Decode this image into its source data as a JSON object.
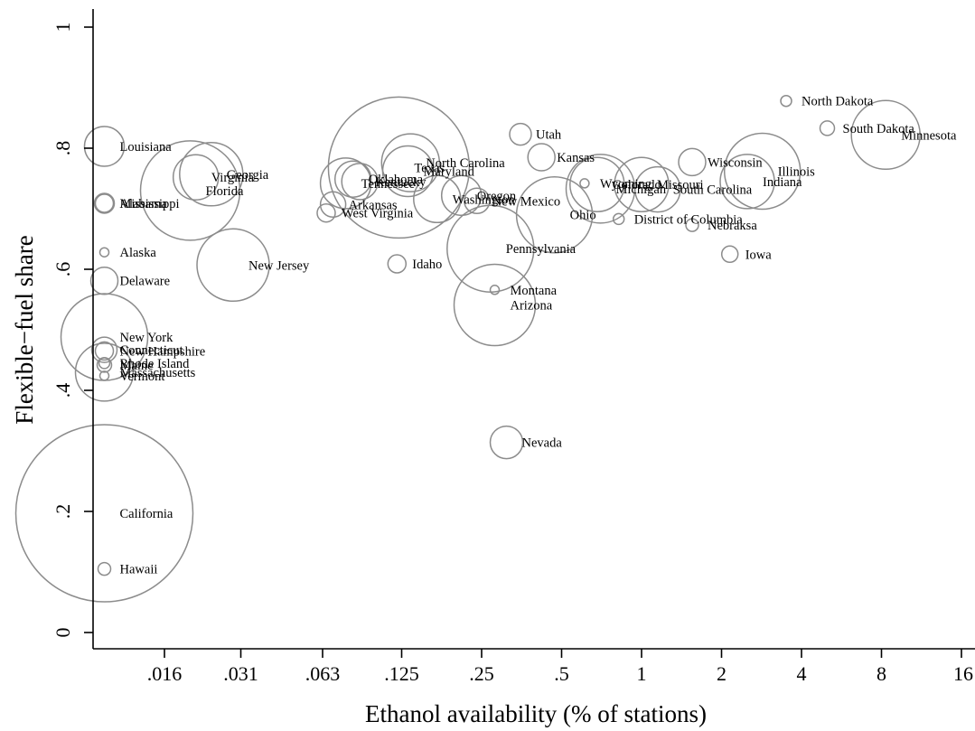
{
  "chart_data": {
    "type": "scatter",
    "xlabel": "Ethanol availability (% of stations)",
    "ylabel": "Flexible−fuel share",
    "x_scale": "log2",
    "xlim": [
      0.0078,
      16
    ],
    "ylim": [
      0,
      1
    ],
    "x_ticks": [
      0.016,
      0.031,
      0.063,
      0.125,
      0.25,
      0.5,
      1,
      2,
      4,
      8,
      16
    ],
    "x_tick_labels": [
      ".016",
      ".031",
      ".063",
      ".125",
      ".25",
      ".5",
      "1",
      "2",
      "4",
      "8",
      "16"
    ],
    "y_ticks": [
      0,
      0.2,
      0.4,
      0.6,
      0.8,
      1
    ],
    "y_tick_labels": [
      "0",
      ".2",
      ".4",
      ".6",
      ".8",
      "1"
    ],
    "grid": false,
    "legend": "none",
    "marker_color": "#8c8c8c",
    "bubble_size_note": "marker area varies by state",
    "points": [
      {
        "label": "North Dakota",
        "x": 3.5,
        "y": 0.878,
        "r": 6
      },
      {
        "label": "South Dakota",
        "x": 5.0,
        "y": 0.833,
        "r": 8
      },
      {
        "label": "Minnesota",
        "x": 8.3,
        "y": 0.822,
        "r": 38
      },
      {
        "label": "Utah",
        "x": 0.35,
        "y": 0.823,
        "r": 12
      },
      {
        "label": "Louisiana",
        "x": 0.0095,
        "y": 0.803,
        "r": 22
      },
      {
        "label": "Kansas",
        "x": 0.42,
        "y": 0.785,
        "r": 15
      },
      {
        "label": "Wisconsin",
        "x": 1.55,
        "y": 0.777,
        "r": 15
      },
      {
        "label": "North Carolina",
        "x": 0.135,
        "y": 0.776,
        "r": 32
      },
      {
        "label": "Illinois",
        "x": 2.85,
        "y": 0.762,
        "r": 42
      },
      {
        "label": "Texas",
        "x": 0.122,
        "y": 0.768,
        "r": 78
      },
      {
        "label": "Maryland",
        "x": 0.132,
        "y": 0.762,
        "r": 28
      },
      {
        "label": "Georgia",
        "x": 0.024,
        "y": 0.757,
        "r": 35
      },
      {
        "label": "Virginia",
        "x": 0.021,
        "y": 0.752,
        "r": 25
      },
      {
        "label": "Oklahoma",
        "x": 0.082,
        "y": 0.749,
        "r": 20
      },
      {
        "label": "Kentucky",
        "x": 0.087,
        "y": 0.745,
        "r": 20
      },
      {
        "label": "Indiana",
        "x": 2.5,
        "y": 0.745,
        "r": 30
      },
      {
        "label": "Tennessee",
        "x": 0.077,
        "y": 0.742,
        "r": 28
      },
      {
        "label": "Colorado",
        "x": 0.68,
        "y": 0.74,
        "r": 30
      },
      {
        "label": "Missouri",
        "x": 1.0,
        "y": 0.74,
        "r": 30
      },
      {
        "label": "Wyoming",
        "x": 0.61,
        "y": 0.742,
        "r": 5
      },
      {
        "label": "Michigan",
        "x": 0.7,
        "y": 0.733,
        "r": 38
      },
      {
        "label": "South Carolina",
        "x": 1.15,
        "y": 0.732,
        "r": 25
      },
      {
        "label": "Florida",
        "x": 0.02,
        "y": 0.73,
        "r": 55
      },
      {
        "label": "Oregon",
        "x": 0.21,
        "y": 0.722,
        "r": 22
      },
      {
        "label": "Washington",
        "x": 0.17,
        "y": 0.716,
        "r": 26
      },
      {
        "label": "New Mexico",
        "x": 0.24,
        "y": 0.713,
        "r": 14
      },
      {
        "label": "Mississippi",
        "x": 0.0095,
        "y": 0.709,
        "r": 10
      },
      {
        "label": "Alabama",
        "x": 0.0095,
        "y": 0.709,
        "r": 11
      },
      {
        "label": "Arkansas",
        "x": 0.069,
        "y": 0.707,
        "r": 14
      },
      {
        "label": "Ohio",
        "x": 0.47,
        "y": 0.69,
        "r": 42
      },
      {
        "label": "West Virginia",
        "x": 0.065,
        "y": 0.693,
        "r": 10
      },
      {
        "label": "District of Columbia",
        "x": 0.82,
        "y": 0.683,
        "r": 6
      },
      {
        "label": "Nebraksa",
        "x": 1.55,
        "y": 0.673,
        "r": 7
      },
      {
        "label": "Pennsylvania",
        "x": 0.27,
        "y": 0.634,
        "r": 48
      },
      {
        "label": "Alaska",
        "x": 0.0095,
        "y": 0.628,
        "r": 5
      },
      {
        "label": "Iowa",
        "x": 2.15,
        "y": 0.625,
        "r": 9
      },
      {
        "label": "Idaho",
        "x": 0.12,
        "y": 0.609,
        "r": 10
      },
      {
        "label": "New Jersey",
        "x": 0.029,
        "y": 0.607,
        "r": 40
      },
      {
        "label": "Delaware",
        "x": 0.0095,
        "y": 0.581,
        "r": 15
      },
      {
        "label": "Montana",
        "x": 0.28,
        "y": 0.566,
        "r": 5
      },
      {
        "label": "Arizona",
        "x": 0.28,
        "y": 0.541,
        "r": 45
      },
      {
        "label": "New York",
        "x": 0.0095,
        "y": 0.488,
        "r": 48
      },
      {
        "label": "Connecticut",
        "x": 0.0095,
        "y": 0.467,
        "r": 14
      },
      {
        "label": "New Hampshire",
        "x": 0.0095,
        "y": 0.465,
        "r": 10
      },
      {
        "label": "Rhode Island",
        "x": 0.0095,
        "y": 0.445,
        "r": 6
      },
      {
        "label": "Maine",
        "x": 0.0095,
        "y": 0.442,
        "r": 8
      },
      {
        "label": "Massachusetts",
        "x": 0.0095,
        "y": 0.43,
        "r": 32
      },
      {
        "label": "Vermont",
        "x": 0.0095,
        "y": 0.424,
        "r": 5
      },
      {
        "label": "Nevada",
        "x": 0.31,
        "y": 0.314,
        "r": 18
      },
      {
        "label": "California",
        "x": 0.0095,
        "y": 0.197,
        "r": 98
      },
      {
        "label": "Hawaii",
        "x": 0.0095,
        "y": 0.105,
        "r": 7
      }
    ]
  }
}
